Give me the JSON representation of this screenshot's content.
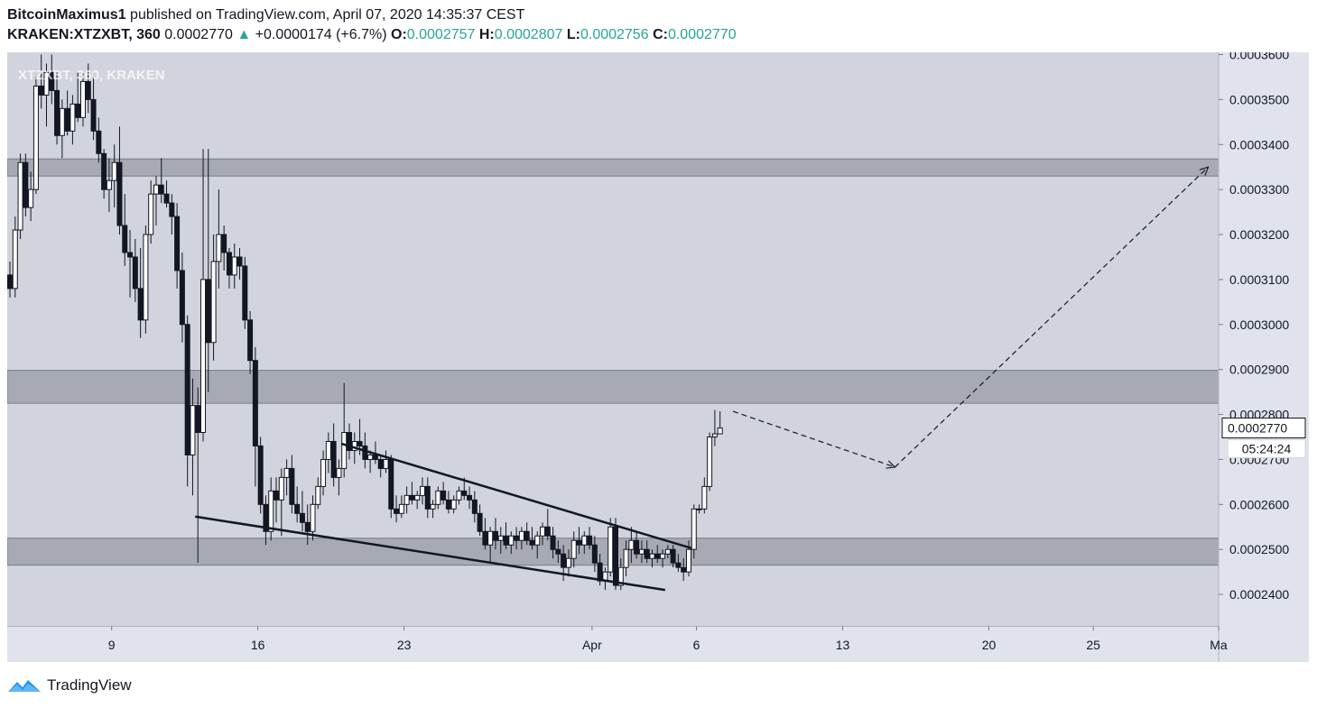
{
  "header": {
    "author": "BitcoinMaximus1",
    "published": "published on TradingView.com, April 07, 2020 14:35:37 CEST",
    "symbol": "KRAKEN:XTZXBT, 360",
    "last": "0.0002770",
    "change": "+0.0000174 (+6.7%)",
    "o_label": "O:",
    "o_value": "0.0002757",
    "h_label": "H:",
    "h_value": "0.0002807",
    "l_label": "L:",
    "l_value": "0.0002756",
    "c_label": "C:",
    "c_value": "0.0002770"
  },
  "footer": {
    "brand": "TradingView",
    "logo_icon": "tradingview-logo-icon"
  },
  "chart_data": {
    "type": "candlestick",
    "watermark": "XTZXBT, 360, KRAKEN",
    "y_ticks": [
      "0.0003600",
      "0.0003500",
      "0.0003400",
      "0.0003300",
      "0.0003200",
      "0.0003100",
      "0.0003000",
      "0.0002900",
      "0.0002800",
      "0.0002700",
      "0.0002600",
      "0.0002500",
      "0.0002400"
    ],
    "y_tick_values": [
      0.00036,
      0.00035,
      0.00034,
      0.00033,
      0.00032,
      0.00031,
      0.0003,
      0.00029,
      0.00028,
      0.00027,
      0.00026,
      0.00025,
      0.00024
    ],
    "ylim": [
      0.000233,
      0.0003605
    ],
    "x_ticks": [
      "9",
      "16",
      "23",
      "Apr",
      "6",
      "13",
      "20",
      "25",
      "Ma"
    ],
    "x_tick_dates": [
      "2020-03-09",
      "2020-03-16",
      "2020-03-23",
      "2020-04-01",
      "2020-04-06",
      "2020-04-13",
      "2020-04-20",
      "2020-04-25",
      "2020-05-01"
    ],
    "xlim": [
      "2020-03-04",
      "2020-05-01"
    ],
    "price_label": "0.0002770",
    "countdown_label": "05:24:24",
    "zones": [
      {
        "from": 0.000333,
        "to": 0.0003368
      },
      {
        "from": 0.0002825,
        "to": 0.0002898
      },
      {
        "from": 0.0002465,
        "to": 0.0002525
      }
    ],
    "trendlines": [
      {
        "role": "upper",
        "from": [
          "2020-03-20T00:00",
          0.0002735
        ],
        "to": [
          "2020-04-05T18:00",
          0.0002503
        ]
      },
      {
        "role": "lower",
        "from": [
          "2020-03-13T00:00",
          0.0002573
        ],
        "to": [
          "2020-04-04T12:00",
          0.000241
        ]
      }
    ],
    "projection": [
      [
        "2020-04-07T18:00",
        0.0002807
      ],
      [
        "2020-04-15T12:00",
        0.0002683
      ],
      [
        "2020-04-30T12:00",
        0.000335
      ]
    ],
    "colors": {
      "up": "#ffffff",
      "down": "#131722",
      "plot_bg": "#d1d4dc",
      "zone": "#9598a1",
      "axis_bg": "#e0e3eb"
    },
    "candles": [
      [
        "2020-03-04T00:00",
        0.000311,
        0.000314,
        0.000306,
        0.000308
      ],
      [
        "2020-03-04T06:00",
        0.000308,
        0.000324,
        0.000306,
        0.000321
      ],
      [
        "2020-03-04T12:00",
        0.000321,
        0.000338,
        0.000319,
        0.000336
      ],
      [
        "2020-03-04T18:00",
        0.000336,
        0.000338,
        0.000324,
        0.000326
      ],
      [
        "2020-03-05T00:00",
        0.000326,
        0.000334,
        0.000323,
        0.00033
      ],
      [
        "2020-03-05T06:00",
        0.00033,
        0.000355,
        0.000329,
        0.000353
      ],
      [
        "2020-03-05T12:00",
        0.000353,
        0.00036,
        0.000348,
        0.000351
      ],
      [
        "2020-03-05T18:00",
        0.000351,
        0.000358,
        0.000344,
        0.000356
      ],
      [
        "2020-03-06T00:00",
        0.000356,
        0.00036,
        0.000349,
        0.000352
      ],
      [
        "2020-03-06T06:00",
        0.000352,
        0.000356,
        0.00034,
        0.000342
      ],
      [
        "2020-03-06T12:00",
        0.000342,
        0.00035,
        0.000337,
        0.000348
      ],
      [
        "2020-03-06T18:00",
        0.000348,
        0.000352,
        0.000342,
        0.000343
      ],
      [
        "2020-03-07T00:00",
        0.000343,
        0.000351,
        0.00034,
        0.000349
      ],
      [
        "2020-03-07T06:00",
        0.000349,
        0.000356,
        0.000345,
        0.000346
      ],
      [
        "2020-03-07T12:00",
        0.000346,
        0.000356,
        0.000344,
        0.000354
      ],
      [
        "2020-03-07T18:00",
        0.000354,
        0.000358,
        0.000347,
        0.00035
      ],
      [
        "2020-03-08T00:00",
        0.00035,
        0.000356,
        0.000341,
        0.000343
      ],
      [
        "2020-03-08T06:00",
        0.000343,
        0.000346,
        0.000336,
        0.000338
      ],
      [
        "2020-03-08T12:00",
        0.000338,
        0.000339,
        0.000328,
        0.00033
      ],
      [
        "2020-03-08T18:00",
        0.00033,
        0.000337,
        0.000325,
        0.000332
      ],
      [
        "2020-03-09T00:00",
        0.000332,
        0.00034,
        0.000326,
        0.000336
      ],
      [
        "2020-03-09T06:00",
        0.000336,
        0.000344,
        0.00032,
        0.000322
      ],
      [
        "2020-03-09T12:00",
        0.000322,
        0.000329,
        0.000313,
        0.000316
      ],
      [
        "2020-03-09T18:00",
        0.000316,
        0.000321,
        0.000306,
        0.000315
      ],
      [
        "2020-03-10T00:00",
        0.000315,
        0.000319,
        0.000305,
        0.000308
      ],
      [
        "2020-03-10T06:00",
        0.000308,
        0.000317,
        0.000297,
        0.000301
      ],
      [
        "2020-03-10T12:00",
        0.000301,
        0.000322,
        0.000298,
        0.00032
      ],
      [
        "2020-03-10T18:00",
        0.00032,
        0.000332,
        0.000318,
        0.000329
      ],
      [
        "2020-03-11T00:00",
        0.000329,
        0.000333,
        0.000322,
        0.000331
      ],
      [
        "2020-03-11T06:00",
        0.000331,
        0.000337,
        0.000327,
        0.000329
      ],
      [
        "2020-03-11T12:00",
        0.000329,
        0.000332,
        0.000326,
        0.000327
      ],
      [
        "2020-03-11T18:00",
        0.000327,
        0.000329,
        0.00032,
        0.000324
      ],
      [
        "2020-03-12T00:00",
        0.000324,
        0.000327,
        0.000308,
        0.000312
      ],
      [
        "2020-03-12T06:00",
        0.000312,
        0.000316,
        0.000296,
        0.0003
      ],
      [
        "2020-03-12T12:00",
        0.0003,
        0.000302,
        0.000264,
        0.000271
      ],
      [
        "2020-03-12T18:00",
        0.000271,
        0.000288,
        0.000262,
        0.000282
      ],
      [
        "2020-03-13T00:00",
        0.000282,
        0.000286,
        0.000247,
        0.000276
      ],
      [
        "2020-03-13T06:00",
        0.000276,
        0.000339,
        0.000274,
        0.00031
      ],
      [
        "2020-03-13T12:00",
        0.00031,
        0.000339,
        0.000285,
        0.000296
      ],
      [
        "2020-03-13T18:00",
        0.000296,
        0.00032,
        0.000292,
        0.000314
      ],
      [
        "2020-03-14T00:00",
        0.000314,
        0.00033,
        0.000308,
        0.00032
      ],
      [
        "2020-03-14T06:00",
        0.00032,
        0.000322,
        0.000312,
        0.000316
      ],
      [
        "2020-03-14T12:00",
        0.000316,
        0.000317,
        0.000308,
        0.000311
      ],
      [
        "2020-03-14T18:00",
        0.000311,
        0.000318,
        0.000308,
        0.000315
      ],
      [
        "2020-03-15T00:00",
        0.000315,
        0.000317,
        0.00031,
        0.000313
      ],
      [
        "2020-03-15T06:00",
        0.000313,
        0.000315,
        0.000299,
        0.000301
      ],
      [
        "2020-03-15T12:00",
        0.000301,
        0.000303,
        0.000289,
        0.000292
      ],
      [
        "2020-03-15T18:00",
        0.000292,
        0.000295,
        0.000264,
        0.000273
      ],
      [
        "2020-03-16T00:00",
        0.000273,
        0.000275,
        0.000258,
        0.00026
      ],
      [
        "2020-03-16T06:00",
        0.00026,
        0.000262,
        0.000251,
        0.000254
      ],
      [
        "2020-03-16T12:00",
        0.000254,
        0.000266,
        0.000252,
        0.000263
      ],
      [
        "2020-03-16T18:00",
        0.000263,
        0.000266,
        0.000256,
        0.000261
      ],
      [
        "2020-03-17T00:00",
        0.000261,
        0.000268,
        0.000253,
        0.000266
      ],
      [
        "2020-03-17T06:00",
        0.000266,
        0.00027,
        0.000262,
        0.000268
      ],
      [
        "2020-03-17T12:00",
        0.000268,
        0.000271,
        0.000258,
        0.00026
      ],
      [
        "2020-03-17T18:00",
        0.00026,
        0.000264,
        0.000256,
        0.000258
      ],
      [
        "2020-03-18T00:00",
        0.000258,
        0.000263,
        0.000254,
        0.000256
      ],
      [
        "2020-03-18T06:00",
        0.000256,
        0.00026,
        0.000251,
        0.000254
      ],
      [
        "2020-03-18T12:00",
        0.000254,
        0.000262,
        0.000252,
        0.00026
      ],
      [
        "2020-03-18T18:00",
        0.00026,
        0.000266,
        0.000259,
        0.000264
      ],
      [
        "2020-03-19T00:00",
        0.000264,
        0.000272,
        0.000262,
        0.00027
      ],
      [
        "2020-03-19T06:00",
        0.00027,
        0.000276,
        0.000267,
        0.000274
      ],
      [
        "2020-03-19T12:00",
        0.000274,
        0.000278,
        0.000264,
        0.000266
      ],
      [
        "2020-03-19T18:00",
        0.000266,
        0.00027,
        0.000262,
        0.000268
      ],
      [
        "2020-03-20T00:00",
        0.000268,
        0.000287,
        0.000266,
        0.000276
      ],
      [
        "2020-03-20T06:00",
        0.000276,
        0.000278,
        0.00027,
        0.000272
      ],
      [
        "2020-03-20T12:00",
        0.000272,
        0.000276,
        0.000269,
        0.000274
      ],
      [
        "2020-03-20T18:00",
        0.000274,
        0.000279,
        0.000271,
        0.000273
      ],
      [
        "2020-03-21T00:00",
        0.000273,
        0.000276,
        0.000268,
        0.00027
      ],
      [
        "2020-03-21T06:00",
        0.00027,
        0.000272,
        0.000267,
        0.000271
      ],
      [
        "2020-03-21T12:00",
        0.000271,
        0.000274,
        0.000269,
        0.00027
      ],
      [
        "2020-03-21T18:00",
        0.00027,
        0.000271,
        0.000266,
        0.000268
      ],
      [
        "2020-03-22T00:00",
        0.000268,
        0.000272,
        0.000267,
        0.00027
      ],
      [
        "2020-03-22T06:00",
        0.00027,
        0.000271,
        0.000257,
        0.000259
      ],
      [
        "2020-03-22T12:00",
        0.000259,
        0.000262,
        0.000256,
        0.000258
      ],
      [
        "2020-03-22T18:00",
        0.000258,
        0.000262,
        0.000257,
        0.00026
      ],
      [
        "2020-03-23T00:00",
        0.00026,
        0.000264,
        0.000258,
        0.000262
      ],
      [
        "2020-03-23T06:00",
        0.000262,
        0.000265,
        0.00026,
        0.000261
      ],
      [
        "2020-03-23T12:00",
        0.000261,
        0.000263,
        0.000259,
        0.000262
      ],
      [
        "2020-03-23T18:00",
        0.000262,
        0.000266,
        0.00026,
        0.000264
      ],
      [
        "2020-03-24T00:00",
        0.000264,
        0.000266,
        0.000257,
        0.000259
      ],
      [
        "2020-03-24T06:00",
        0.000259,
        0.000261,
        0.000257,
        0.00026
      ],
      [
        "2020-03-24T12:00",
        0.00026,
        0.000264,
        0.000259,
        0.000263
      ],
      [
        "2020-03-24T18:00",
        0.000263,
        0.000265,
        0.00026,
        0.000261
      ],
      [
        "2020-03-25T00:00",
        0.000261,
        0.000263,
        0.000258,
        0.000259
      ],
      [
        "2020-03-25T06:00",
        0.000259,
        0.000262,
        0.000258,
        0.000261
      ],
      [
        "2020-03-25T12:00",
        0.000261,
        0.000264,
        0.00026,
        0.000263
      ],
      [
        "2020-03-25T18:00",
        0.000263,
        0.000266,
        0.000261,
        0.000262
      ],
      [
        "2020-03-26T00:00",
        0.000262,
        0.000264,
        0.000259,
        0.000261
      ],
      [
        "2020-03-26T06:00",
        0.000261,
        0.000263,
        0.000256,
        0.000258
      ],
      [
        "2020-03-26T12:00",
        0.000258,
        0.00026,
        0.000253,
        0.000254
      ],
      [
        "2020-03-26T18:00",
        0.000254,
        0.000257,
        0.00025,
        0.000251
      ],
      [
        "2020-03-27T00:00",
        0.000251,
        0.000255,
        0.000247,
        0.000254
      ],
      [
        "2020-03-27T06:00",
        0.000254,
        0.000257,
        0.00025,
        0.000252
      ],
      [
        "2020-03-27T12:00",
        0.000252,
        0.000255,
        0.000249,
        0.000253
      ],
      [
        "2020-03-27T18:00",
        0.000253,
        0.000256,
        0.00025,
        0.000251
      ],
      [
        "2020-03-28T00:00",
        0.000251,
        0.000254,
        0.000249,
        0.000253
      ],
      [
        "2020-03-28T06:00",
        0.000253,
        0.000255,
        0.00025,
        0.000252
      ],
      [
        "2020-03-28T12:00",
        0.000252,
        0.000255,
        0.00025,
        0.000254
      ],
      [
        "2020-03-28T18:00",
        0.000254,
        0.000256,
        0.000251,
        0.000252
      ],
      [
        "2020-03-29T00:00",
        0.000252,
        0.000255,
        0.00025,
        0.000251
      ],
      [
        "2020-03-29T06:00",
        0.000251,
        0.000254,
        0.000248,
        0.000253
      ],
      [
        "2020-03-29T12:00",
        0.000253,
        0.000256,
        0.000251,
        0.000255
      ],
      [
        "2020-03-29T18:00",
        0.000255,
        0.000259,
        0.000252,
        0.000253
      ],
      [
        "2020-03-30T00:00",
        0.000253,
        0.000255,
        0.000248,
        0.00025
      ],
      [
        "2020-03-30T06:00",
        0.00025,
        0.000252,
        0.000247,
        0.000249
      ],
      [
        "2020-03-30T12:00",
        0.000249,
        0.000251,
        0.000243,
        0.000246
      ],
      [
        "2020-03-30T18:00",
        0.000246,
        0.00025,
        0.000244,
        0.000248
      ],
      [
        "2020-03-31T00:00",
        0.000248,
        0.000254,
        0.000246,
        0.000252
      ],
      [
        "2020-03-31T06:00",
        0.000252,
        0.000255,
        0.000249,
        0.000251
      ],
      [
        "2020-03-31T12:00",
        0.000251,
        0.000254,
        0.000249,
        0.000253
      ],
      [
        "2020-03-31T18:00",
        0.000253,
        0.000255,
        0.00025,
        0.000251
      ],
      [
        "2020-04-01T00:00",
        0.000251,
        0.000253,
        0.000245,
        0.000247
      ],
      [
        "2020-04-01T06:00",
        0.000247,
        0.000249,
        0.000242,
        0.000243
      ],
      [
        "2020-04-01T12:00",
        0.000243,
        0.000246,
        0.000241,
        0.000245
      ],
      [
        "2020-04-01T18:00",
        0.000245,
        0.000257,
        0.000244,
        0.000255
      ],
      [
        "2020-04-02T00:00",
        0.000255,
        0.000257,
        0.000241,
        0.000242
      ],
      [
        "2020-04-02T06:00",
        0.000242,
        0.000248,
        0.000241,
        0.000246
      ],
      [
        "2020-04-02T12:00",
        0.000246,
        0.000252,
        0.000244,
        0.00025
      ],
      [
        "2020-04-02T18:00",
        0.00025,
        0.000255,
        0.000247,
        0.000252
      ],
      [
        "2020-04-03T00:00",
        0.000252,
        0.000254,
        0.000248,
        0.000249
      ],
      [
        "2020-04-03T06:00",
        0.000249,
        0.000252,
        0.000247,
        0.00025
      ],
      [
        "2020-04-03T12:00",
        0.00025,
        0.000252,
        0.000247,
        0.000248
      ],
      [
        "2020-04-03T18:00",
        0.000248,
        0.00025,
        0.000246,
        0.000249
      ],
      [
        "2020-04-04T00:00",
        0.000249,
        0.000251,
        0.000247,
        0.000248
      ],
      [
        "2020-04-04T06:00",
        0.000248,
        0.00025,
        0.000246,
        0.000249
      ],
      [
        "2020-04-04T12:00",
        0.000249,
        0.000251,
        0.000248,
        0.00025
      ],
      [
        "2020-04-04T18:00",
        0.00025,
        0.000251,
        0.000246,
        0.000247
      ],
      [
        "2020-04-05T00:00",
        0.000247,
        0.000249,
        0.000245,
        0.000246
      ],
      [
        "2020-04-05T06:00",
        0.000246,
        0.000248,
        0.000243,
        0.000245
      ],
      [
        "2020-04-05T12:00",
        0.000245,
        0.000252,
        0.000244,
        0.00025
      ],
      [
        "2020-04-05T18:00",
        0.00025,
        0.00026,
        0.000248,
        0.000259
      ],
      [
        "2020-04-06T00:00",
        0.000259,
        0.00026,
        0.000258,
        0.000259
      ],
      [
        "2020-04-06T06:00",
        0.000259,
        0.000266,
        0.000258,
        0.000264
      ],
      [
        "2020-04-06T12:00",
        0.000264,
        0.000276,
        0.000263,
        0.000275
      ],
      [
        "2020-04-06T18:00",
        0.000275,
        0.000281,
        0.000273,
        0.0002757
      ],
      [
        "2020-04-07T00:00",
        0.0002757,
        0.0002807,
        0.0002756,
        0.000277
      ]
    ]
  }
}
